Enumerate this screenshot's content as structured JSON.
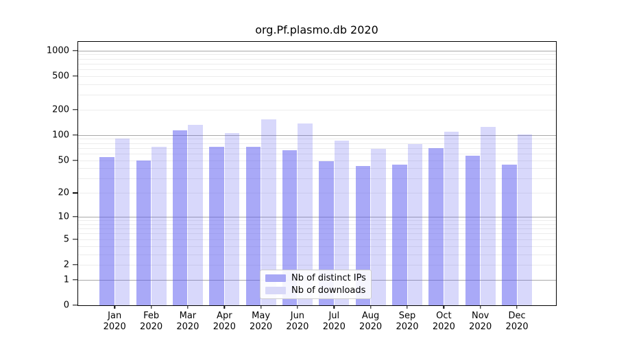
{
  "title": "org.Pf.plasmo.db 2020",
  "chart_data": {
    "type": "bar",
    "title": "org.Pf.plasmo.db 2020",
    "scale_y": "symlog (position proportional to ln(1+value))",
    "categories": [
      "Jan",
      "Feb",
      "Mar",
      "Apr",
      "May",
      "Jun",
      "Jul",
      "Aug",
      "Sep",
      "Oct",
      "Nov",
      "Dec"
    ],
    "category_year": "2020",
    "series": [
      {
        "name": "Nb of distinct IPs",
        "color": "#a8a8f5",
        "fill": "rgba(90,90,240,0.52)",
        "values": [
          55,
          50,
          113,
          72,
          73,
          66,
          49,
          43,
          44,
          70,
          57,
          44
        ]
      },
      {
        "name": "Nb of downloads",
        "color": "#d8d8f8",
        "fill": "rgba(90,90,240,0.235)",
        "values": [
          91,
          72,
          132,
          106,
          155,
          137,
          86,
          68,
          78,
          110,
          124,
          101
        ]
      }
    ],
    "y_ticks": [
      0,
      1,
      2,
      5,
      10,
      20,
      50,
      100,
      200,
      500,
      1000
    ],
    "ylim": [
      0,
      1000
    ],
    "grid": "horizontal, log minor + major lines at 1/10/100/1000",
    "legend_position": "inside bottom-center"
  },
  "legend": {
    "items": [
      {
        "label": "Nb of distinct IPs",
        "swatch_color": "#a8a8f5"
      },
      {
        "label": "Nb of downloads",
        "swatch_color": "#d8d8f8"
      }
    ]
  }
}
